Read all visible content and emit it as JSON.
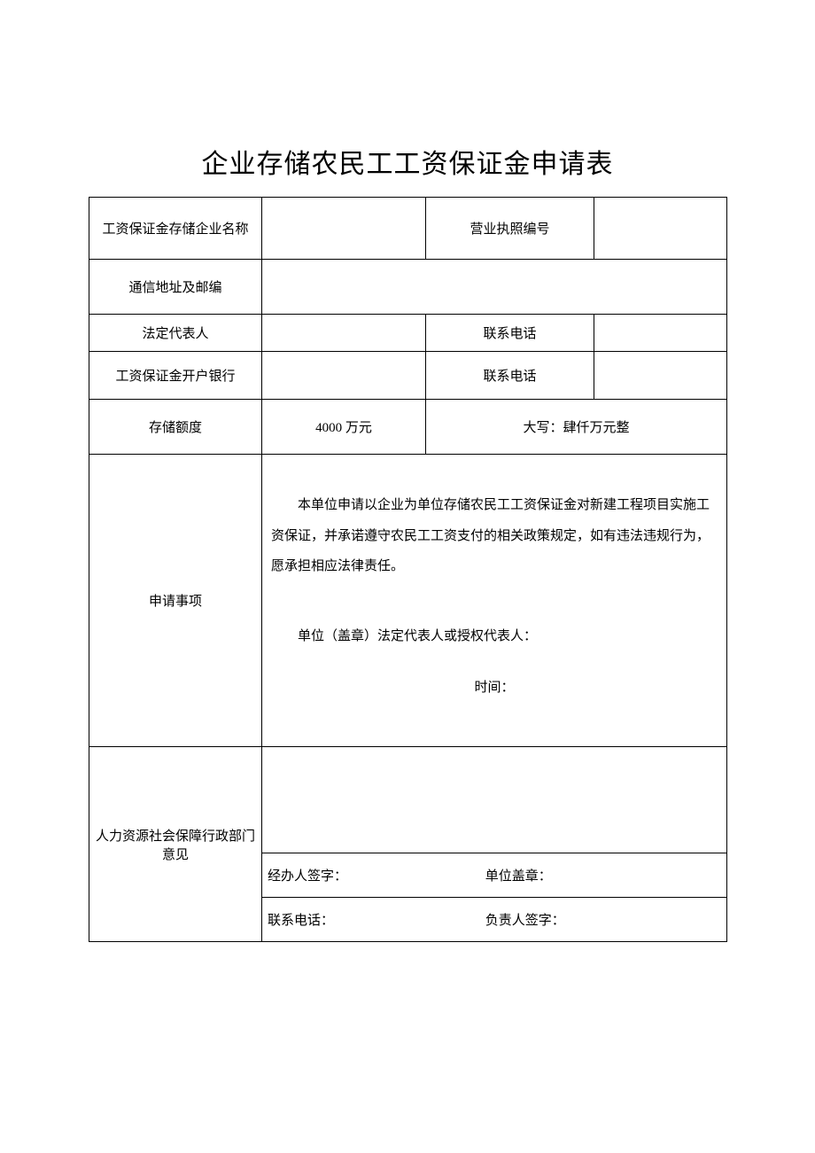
{
  "title": "企业存储农民工工资保证金申请表",
  "rows": {
    "r1": {
      "label": "工资保证金存储企业名称",
      "value": "",
      "label2": "营业执照编号",
      "value2": ""
    },
    "r2": {
      "label": "通信地址及邮编",
      "value": ""
    },
    "r3": {
      "label": "法定代表人",
      "value": "",
      "label2": "联系电话",
      "value2": ""
    },
    "r4": {
      "label": "工资保证金开户银行",
      "value": "",
      "label2": "联系电话",
      "value2": ""
    },
    "r5": {
      "label": "存储额度",
      "amount": "4000 万元",
      "amount_words": "大写：肆仟万元整"
    },
    "application": {
      "label": "申请事项",
      "body": "本单位申请以企业为单位存储农民工工资保证金对新建工程项目实施工资保证，并承诺遵守农民工工资支付的相关政策规定，如有违法违规行为，愿承担相应法律责任。",
      "sig_label": "单位（盖章）法定代表人或授权代表人：",
      "time_label": "时间："
    },
    "dept": {
      "label": "人力资源社会保障行政部门意见",
      "handler_label": "经办人签字：",
      "stamp_label": "单位盖章：",
      "phone_label": "联系电话：",
      "leader_label": "负责人签字："
    }
  },
  "style": {
    "background_color": "#ffffff",
    "border_color": "#000000",
    "title_fontsize": 30,
    "cell_fontsize": 15,
    "font_family": "SimSun"
  }
}
